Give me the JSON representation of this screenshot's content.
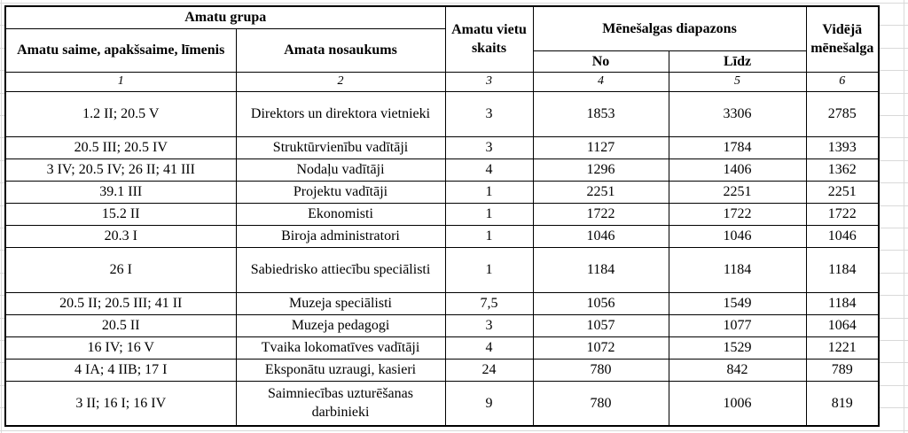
{
  "page": {
    "gridline_color": "#d9d9d9",
    "table_border_color": "#000000",
    "text_color": "#000000"
  },
  "table": {
    "header": {
      "group_title": "Amatu grupa",
      "family_label": "Amatu saime, apakšsaime, līmenis",
      "name_label": "Amata nosaukums",
      "positions_label": "Amatu vietu skaits",
      "range_label": "Mēnešalgas diapazons",
      "from_label": "No",
      "to_label": "Līdz",
      "average_label": "Vidējā mēnešalga",
      "column_numbers": [
        "1",
        "2",
        "3",
        "4",
        "5",
        "6"
      ]
    },
    "rows": [
      {
        "family": "1.2 II; 20.5 V",
        "title": "Direktors un direktora vietnieki",
        "positions": "3",
        "from": "1853",
        "to": "3306",
        "average": "2785"
      },
      {
        "family": "20.5 III; 20.5 IV",
        "title": "Struktūrvienību vadītāji",
        "positions": "3",
        "from": "1127",
        "to": "1784",
        "average": "1393"
      },
      {
        "family": "3 IV; 20.5 IV; 26 II; 41 III",
        "title": "Nodaļu vadītāji",
        "positions": "4",
        "from": "1296",
        "to": "1406",
        "average": "1362"
      },
      {
        "family": "39.1 III",
        "title": "Projektu vadītāji",
        "positions": "1",
        "from": "2251",
        "to": "2251",
        "average": "2251"
      },
      {
        "family": "15.2 II",
        "title": "Ekonomisti",
        "positions": "1",
        "from": "1722",
        "to": "1722",
        "average": "1722"
      },
      {
        "family": "20.3 I",
        "title": "Biroja administratori",
        "positions": "1",
        "from": "1046",
        "to": "1046",
        "average": "1046"
      },
      {
        "family": "26 I",
        "title": "Sabiedrisko attiecību speciālisti",
        "positions": "1",
        "from": "1184",
        "to": "1184",
        "average": "1184"
      },
      {
        "family": "20.5 II; 20.5 III; 41 II",
        "title": "Muzeja speciālisti",
        "positions": "7,5",
        "from": "1056",
        "to": "1549",
        "average": "1184"
      },
      {
        "family": "20.5 II",
        "title": "Muzeja pedagogi",
        "positions": "3",
        "from": "1057",
        "to": "1077",
        "average": "1064"
      },
      {
        "family": "16 IV; 16 V",
        "title": "Tvaika lokomatīves vadītāji",
        "positions": "4",
        "from": "1072",
        "to": "1529",
        "average": "1221"
      },
      {
        "family": "4 IA; 4 IIB; 17 I",
        "title": "Eksponātu uzraugi, kasieri",
        "positions": "24",
        "from": "780",
        "to": "842",
        "average": "789"
      },
      {
        "family": "3 II; 16 I; 16 IV",
        "title": "Saimniecības uzturēšanas darbinieki",
        "positions": "9",
        "from": "780",
        "to": "1006",
        "average": "819"
      }
    ]
  }
}
